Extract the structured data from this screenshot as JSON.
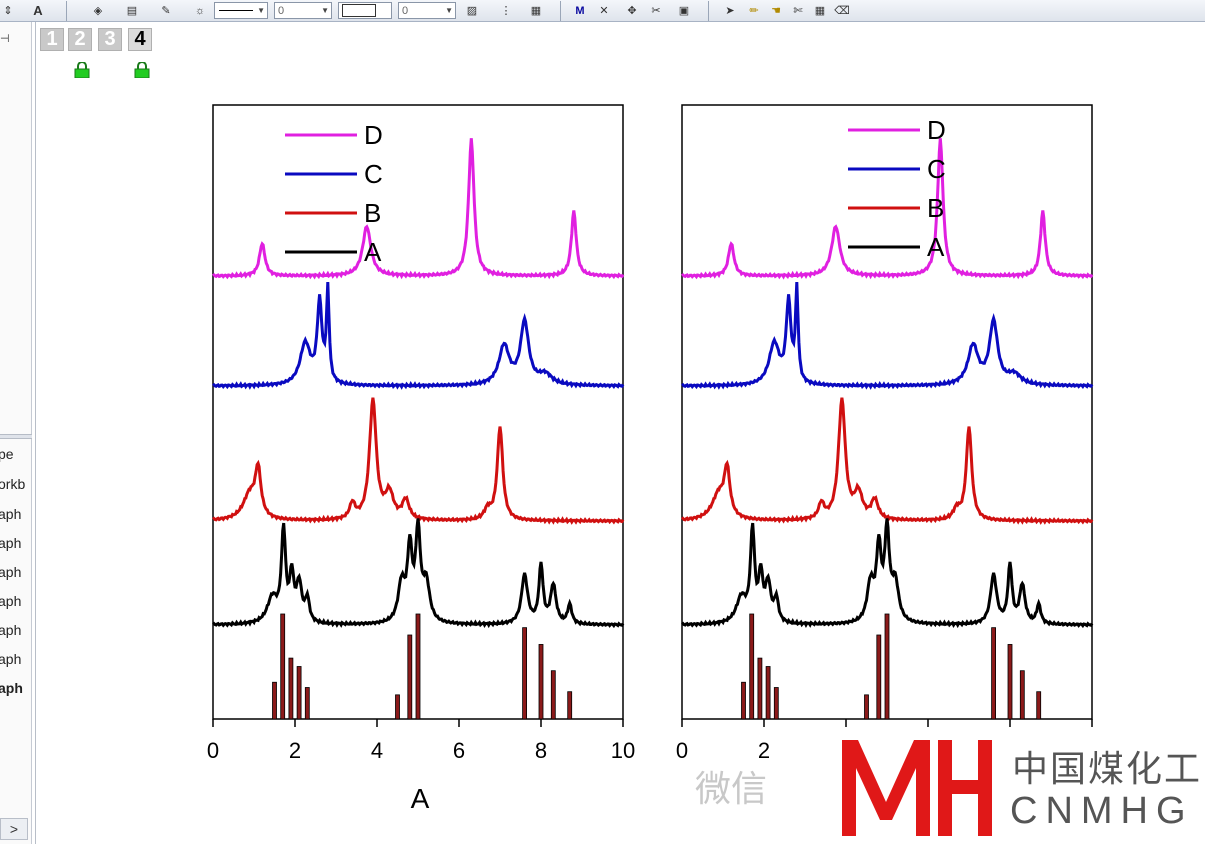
{
  "toolbar": {
    "line_width_value": "0",
    "size_value": "0"
  },
  "left_panel": {
    "pin_glyph": "⊣",
    "items": [
      "pe",
      "orkb",
      "aph",
      "aph",
      "aph",
      "aph",
      "aph",
      "aph",
      "aph"
    ],
    "scroll_glyph": ">"
  },
  "layers": {
    "tabs": [
      "1",
      "2",
      "3",
      "4"
    ],
    "active": "4"
  },
  "watermark": {
    "wechat_text": "微信",
    "logo_text": "MH",
    "company_cn": "中国煤化工",
    "company_en": "CNMHG"
  },
  "colors": {
    "D": "#e020e0",
    "C": "#0a0ac0",
    "B": "#d01010",
    "A": "#000000",
    "stick": "#8b1a1a",
    "logo_red": "#e01818"
  },
  "chart_data": [
    {
      "type": "line",
      "xlabel": "A",
      "ylabel": "",
      "xlim": [
        0,
        10
      ],
      "xticks": [
        "0",
        "2",
        "4",
        "6",
        "8",
        "10"
      ],
      "legend": {
        "position": "top-left",
        "entries": [
          "D",
          "C",
          "B",
          "A"
        ]
      },
      "series": [
        {
          "name": "D",
          "offset": 3,
          "peaks": [
            [
              1.2,
              0.25,
              0.08
            ],
            [
              3.75,
              0.38,
              0.12
            ],
            [
              6.3,
              1.05,
              0.08
            ],
            [
              8.8,
              0.5,
              0.07
            ]
          ]
        },
        {
          "name": "C",
          "offset": 2,
          "peaks": [
            [
              2.25,
              0.32,
              0.15
            ],
            [
              2.6,
              0.62,
              0.07
            ],
            [
              2.8,
              0.7,
              0.04
            ],
            [
              7.1,
              0.3,
              0.15
            ],
            [
              7.6,
              0.48,
              0.12
            ],
            [
              8.1,
              0.08,
              0.2
            ]
          ]
        },
        {
          "name": "B",
          "offset": 1,
          "peaks": [
            [
              0.9,
              0.2,
              0.2
            ],
            [
              1.1,
              0.35,
              0.08
            ],
            [
              3.4,
              0.12,
              0.08
            ],
            [
              3.9,
              0.92,
              0.1
            ],
            [
              4.3,
              0.2,
              0.12
            ],
            [
              4.7,
              0.15,
              0.1
            ],
            [
              7.0,
              0.72,
              0.08
            ],
            [
              6.7,
              0.08,
              0.1
            ]
          ]
        },
        {
          "name": "A",
          "offset": 0,
          "peaks": [
            [
              1.45,
              0.2,
              0.15
            ],
            [
              1.72,
              0.7,
              0.06
            ],
            [
              1.92,
              0.35,
              0.06
            ],
            [
              2.1,
              0.3,
              0.08
            ],
            [
              2.3,
              0.18,
              0.06
            ],
            [
              4.6,
              0.3,
              0.1
            ],
            [
              4.8,
              0.55,
              0.07
            ],
            [
              5.0,
              0.68,
              0.07
            ],
            [
              5.2,
              0.3,
              0.1
            ],
            [
              7.6,
              0.38,
              0.09
            ],
            [
              8.0,
              0.45,
              0.06
            ],
            [
              8.3,
              0.3,
              0.08
            ],
            [
              8.7,
              0.15,
              0.06
            ]
          ]
        }
      ],
      "sticks": [
        [
          1.5,
          0.35
        ],
        [
          1.7,
          1.0
        ],
        [
          1.9,
          0.58
        ],
        [
          2.1,
          0.5
        ],
        [
          2.3,
          0.3
        ],
        [
          4.5,
          0.23
        ],
        [
          4.8,
          0.8
        ],
        [
          5.0,
          1.0
        ],
        [
          7.6,
          0.87
        ],
        [
          8.0,
          0.71
        ],
        [
          8.3,
          0.46
        ],
        [
          8.7,
          0.26
        ]
      ]
    },
    {
      "type": "line",
      "xlabel": "",
      "ylabel": "",
      "xlim": [
        0,
        10
      ],
      "xticks": [
        "0",
        "2"
      ],
      "legend": {
        "position": "top-center",
        "entries": [
          "D",
          "C",
          "B",
          "A"
        ]
      },
      "series": [
        {
          "name": "D",
          "offset": 3,
          "peaks": [
            [
              1.2,
              0.25,
              0.08
            ],
            [
              3.75,
              0.38,
              0.12
            ],
            [
              6.3,
              1.05,
              0.08
            ],
            [
              8.8,
              0.5,
              0.07
            ]
          ]
        },
        {
          "name": "C",
          "offset": 2,
          "peaks": [
            [
              2.25,
              0.32,
              0.15
            ],
            [
              2.6,
              0.62,
              0.07
            ],
            [
              2.8,
              0.7,
              0.04
            ],
            [
              7.1,
              0.3,
              0.15
            ],
            [
              7.6,
              0.48,
              0.12
            ],
            [
              8.1,
              0.08,
              0.2
            ]
          ]
        },
        {
          "name": "B",
          "offset": 1,
          "peaks": [
            [
              0.9,
              0.2,
              0.2
            ],
            [
              1.1,
              0.35,
              0.08
            ],
            [
              3.4,
              0.12,
              0.08
            ],
            [
              3.9,
              0.92,
              0.1
            ],
            [
              4.3,
              0.2,
              0.12
            ],
            [
              4.7,
              0.15,
              0.1
            ],
            [
              7.0,
              0.72,
              0.08
            ],
            [
              6.7,
              0.08,
              0.1
            ]
          ]
        },
        {
          "name": "A",
          "offset": 0,
          "peaks": [
            [
              1.45,
              0.2,
              0.15
            ],
            [
              1.72,
              0.7,
              0.06
            ],
            [
              1.92,
              0.35,
              0.06
            ],
            [
              2.1,
              0.3,
              0.08
            ],
            [
              2.3,
              0.18,
              0.06
            ],
            [
              4.6,
              0.3,
              0.1
            ],
            [
              4.8,
              0.55,
              0.07
            ],
            [
              5.0,
              0.68,
              0.07
            ],
            [
              5.2,
              0.3,
              0.1
            ],
            [
              7.6,
              0.38,
              0.09
            ],
            [
              8.0,
              0.45,
              0.06
            ],
            [
              8.3,
              0.3,
              0.08
            ],
            [
              8.7,
              0.15,
              0.06
            ]
          ]
        }
      ],
      "sticks": [
        [
          1.5,
          0.35
        ],
        [
          1.7,
          1.0
        ],
        [
          1.9,
          0.58
        ],
        [
          2.1,
          0.5
        ],
        [
          2.3,
          0.3
        ],
        [
          4.5,
          0.23
        ],
        [
          4.8,
          0.8
        ],
        [
          5.0,
          1.0
        ],
        [
          7.6,
          0.87
        ],
        [
          8.0,
          0.71
        ],
        [
          8.3,
          0.46
        ],
        [
          8.7,
          0.26
        ]
      ]
    }
  ]
}
